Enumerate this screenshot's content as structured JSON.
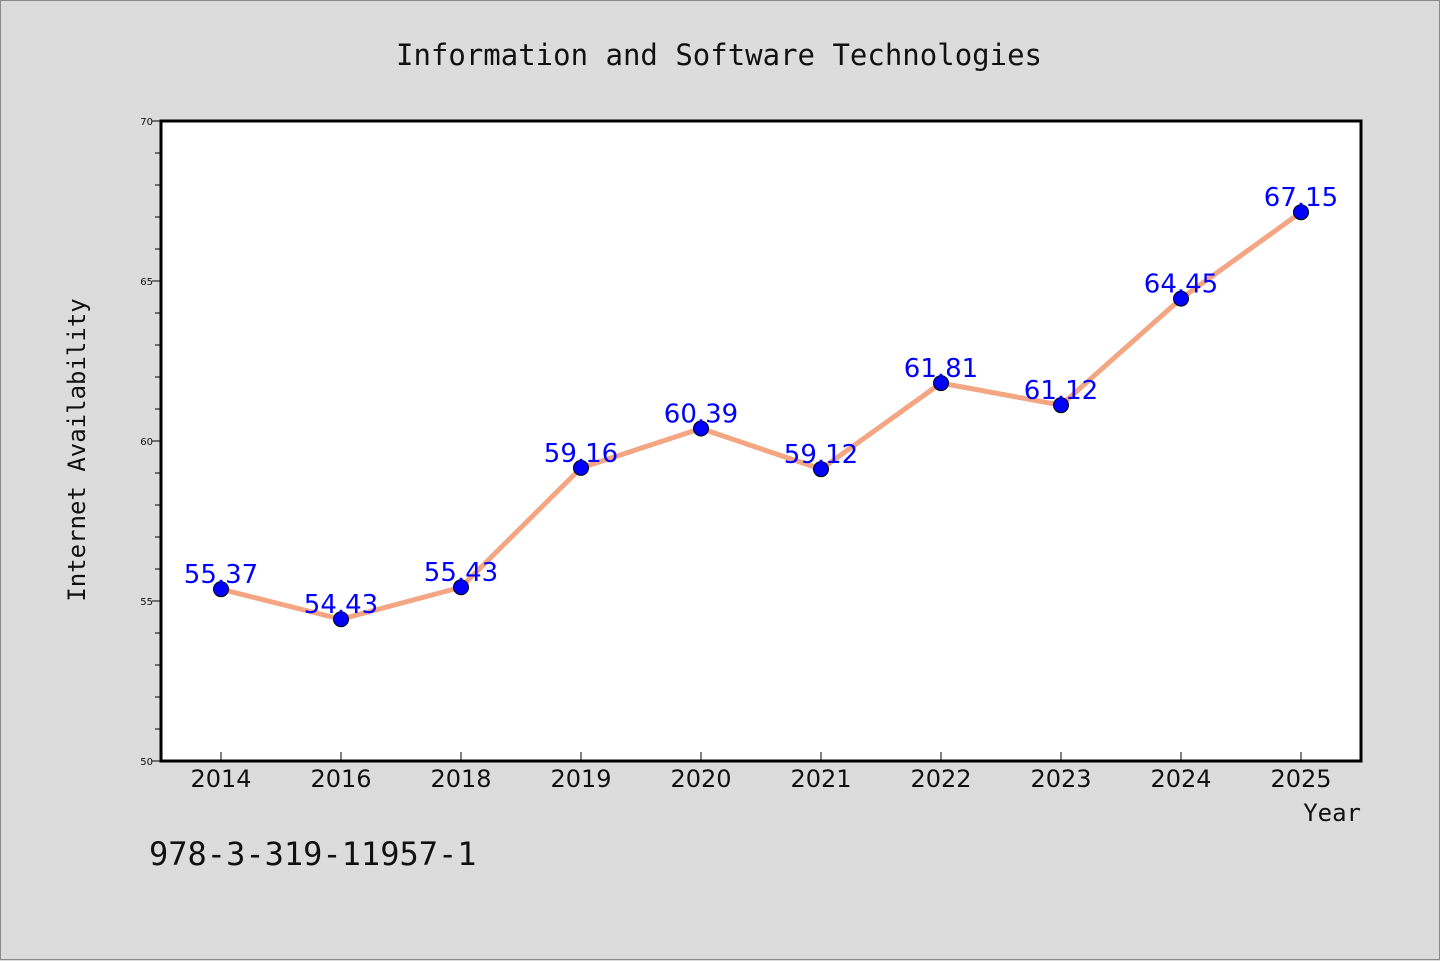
{
  "chart_data": {
    "type": "line",
    "title": "Information and Software Technologies",
    "xlabel": "Year",
    "ylabel": "Internet Availability",
    "categories": [
      "2014",
      "2016",
      "2018",
      "2019",
      "2020",
      "2021",
      "2022",
      "2023",
      "2024",
      "2025"
    ],
    "series": [
      {
        "values": [
          55.37,
          54.43,
          55.43,
          59.16,
          60.39,
          59.12,
          61.81,
          61.12,
          64.45,
          67.15
        ],
        "line_color": "#f4a582",
        "marker_color": "#0000ff",
        "label_color": "#0000ff"
      }
    ],
    "data_labels": [
      "55.37",
      "54.43",
      "55.43",
      "59.16",
      "60.39",
      "59.12",
      "61.81",
      "61.12",
      "64.45",
      "67.15"
    ],
    "ylim": [
      50,
      70
    ],
    "yticks": [
      "50",
      "55",
      "60",
      "65",
      "70"
    ],
    "grid": false,
    "legend": "none"
  },
  "footer": {
    "isbn": "978-3-319-11957-1"
  }
}
